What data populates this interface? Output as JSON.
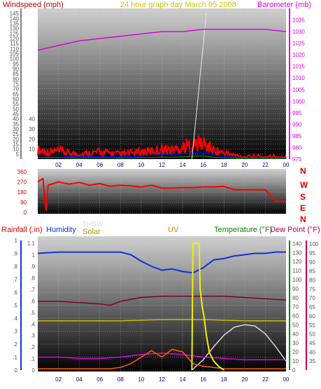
{
  "header": {
    "left": "Windspeed (mph)",
    "center": "24 hour graph day   March 05 2008",
    "right": "Barometer (mb)"
  },
  "colors": {
    "wind": "#ff0000",
    "windGust": "#0000ff",
    "windGreen": "#008000",
    "baro": "#e000e0",
    "dir": "#ff0000",
    "humidity": "#1030e0",
    "solar": "#c0c000",
    "uv": "#f0f000",
    "temp": "#800030",
    "dew": "#e000e0",
    "thsw": "#d8d8d8",
    "rain": "#ff6000",
    "tempAxis": "#008000",
    "dewAxis": "#c00040"
  },
  "bottom_labels": {
    "rainfall": "Rainfall (.in)",
    "humidity": "Humidity",
    "thsw": "THSW",
    "solar": "Solar",
    "uv": "UV",
    "temperature": "Temperature (°F)",
    "dewpoint": "Dew Point (°F)"
  },
  "chart_data": [
    {
      "type": "line",
      "title": "24 hour graph day   March 05 2008",
      "x_ticks": [
        "02",
        "04",
        "06",
        "08",
        "10",
        "12",
        "14",
        "16",
        "18",
        "20",
        "22",
        "00"
      ],
      "y_left": {
        "label": "Windspeed (mph)",
        "range": [
          0,
          150
        ],
        "ticks": [
          5,
          10,
          15,
          20,
          25,
          30,
          35,
          40,
          45,
          50,
          55,
          60,
          65,
          70,
          75,
          80,
          85,
          90,
          95,
          100,
          105,
          110,
          115,
          120,
          125,
          130,
          135,
          140,
          145
        ]
      },
      "y_left_inner": {
        "ticks": [
          10,
          20,
          30,
          40
        ]
      },
      "y_right": {
        "label": "Barometer (mb)",
        "range": [
          975,
          1040
        ],
        "ticks": [
          975,
          980,
          985,
          990,
          995,
          1000,
          1005,
          1010,
          1015,
          1020,
          1025,
          1030,
          1035
        ]
      },
      "series": [
        {
          "name": "Barometer (mb)",
          "hours": [
            0,
            2,
            4,
            6,
            8,
            10,
            12,
            14,
            16,
            18,
            20,
            22,
            24
          ],
          "values": [
            1022,
            1024,
            1026,
            1027,
            1028,
            1029,
            1030,
            1030,
            1031,
            1031,
            1031,
            1031,
            1030
          ]
        },
        {
          "name": "Windspeed (mph)",
          "hours": [
            0,
            1,
            2,
            3,
            4,
            5,
            6,
            7,
            8,
            9,
            10,
            11,
            12,
            13,
            14,
            15,
            16,
            17,
            18,
            19,
            20,
            21,
            22,
            23,
            24
          ],
          "values": [
            9,
            7,
            8,
            6,
            5,
            6,
            7,
            6,
            5,
            6,
            7,
            8,
            10,
            9,
            12,
            14,
            16,
            9,
            6,
            4,
            2,
            3,
            2,
            3,
            2
          ]
        }
      ]
    },
    {
      "type": "line",
      "title": "",
      "y_left": {
        "range": [
          0,
          360
        ],
        "ticks": [
          0,
          90,
          180,
          270,
          360
        ]
      },
      "y_right": {
        "ticks": [
          "N",
          "W",
          "S",
          "E",
          "N"
        ]
      },
      "series": [
        {
          "name": "",
          "hours": [
            0,
            0.5,
            0.8,
            1,
            2,
            3,
            4,
            5,
            6,
            7,
            8,
            9,
            10,
            11,
            12,
            13,
            14,
            15,
            16,
            17,
            18,
            19,
            20,
            21,
            22,
            23,
            24
          ],
          "values": [
            270,
            300,
            20,
            240,
            270,
            250,
            265,
            240,
            255,
            230,
            240,
            235,
            225,
            240,
            215,
            215,
            220,
            220,
            225,
            225,
            230,
            200,
            200,
            200,
            200,
            100,
            100
          ]
        }
      ]
    },
    {
      "type": "line",
      "title": "",
      "x_ticks": [
        "02",
        "04",
        "06",
        "08",
        "10",
        "12",
        "14",
        "16",
        "18",
        "20",
        "22",
        "00"
      ],
      "y_left": {
        "label": "Rainfall (.in)",
        "range": [
          0,
          1.0
        ],
        "ticks": [
          0,
          0.1,
          0.2,
          0.3,
          0.4,
          0.5,
          0.6,
          0.7,
          0.8,
          0.9,
          1.0
        ]
      },
      "y_left_inner": {
        "range": [
          0,
          1.15
        ],
        "ticks": [
          0,
          0.1,
          0.2,
          0.3,
          0.4,
          0.5,
          0.6,
          0.7,
          0.8,
          0.9,
          1,
          1.1
        ]
      },
      "y_temp": {
        "label": "Temperature (°F)",
        "range": [
          0,
          145
        ],
        "ticks": [
          0,
          10,
          20,
          30,
          40,
          50,
          60,
          70,
          80,
          90,
          100,
          110,
          120,
          130,
          140
        ]
      },
      "y_dew": {
        "label": "Dew Point (°F)",
        "range": [
          30,
          102
        ],
        "ticks": [
          35,
          40,
          45,
          50,
          55,
          60,
          65,
          70,
          75,
          80,
          85,
          90,
          95,
          100
        ]
      },
      "series": [
        {
          "name": "Humidity",
          "hours": [
            0,
            2,
            4,
            6,
            8,
            9,
            10,
            11,
            12,
            13,
            14,
            15,
            16,
            17,
            18,
            19,
            20,
            21,
            22,
            23,
            24
          ],
          "values": [
            0.9,
            0.91,
            0.91,
            0.91,
            0.91,
            0.89,
            0.84,
            0.8,
            0.77,
            0.78,
            0.76,
            0.75,
            0.79,
            0.85,
            0.86,
            0.88,
            0.89,
            0.9,
            0.9,
            0.91,
            0.91
          ]
        },
        {
          "name": "Solar",
          "hours": [
            0,
            4,
            8,
            12,
            16,
            20,
            24
          ],
          "values": [
            0.38,
            0.38,
            0.38,
            0.39,
            0.39,
            0.38,
            0.38
          ]
        },
        {
          "name": "Temperature (°F)",
          "hours": [
            0,
            2,
            4,
            6,
            7,
            8,
            10,
            12,
            14,
            16,
            18,
            20,
            22,
            24
          ],
          "values": [
            0.53,
            0.53,
            0.52,
            0.51,
            0.5,
            0.53,
            0.56,
            0.57,
            0.57,
            0.57,
            0.57,
            0.56,
            0.55,
            0.54
          ]
        },
        {
          "name": "UV",
          "hours": [
            14.9,
            15.0,
            15.6,
            15.7,
            15.9,
            16.1,
            16.3,
            16.6,
            17.0,
            17.5,
            18.0
          ],
          "values": [
            0.0,
            1.1,
            1.1,
            0.7,
            0.55,
            0.45,
            0.3,
            0.15,
            0.08,
            0.03,
            0.0
          ]
        },
        {
          "name": "THSW",
          "hours": [
            14.9,
            16,
            17,
            18,
            19,
            20,
            21,
            22,
            23,
            24
          ],
          "values": [
            0.0,
            0.08,
            0.18,
            0.27,
            0.33,
            0.35,
            0.34,
            0.28,
            0.18,
            0.07
          ]
        },
        {
          "name": "Dew Point (°F)",
          "hours": [
            0,
            2,
            4,
            6,
            8,
            10,
            12,
            14,
            16,
            18,
            20,
            22,
            24
          ],
          "values": [
            0.1,
            0.1,
            0.09,
            0.09,
            0.1,
            0.12,
            0.13,
            0.12,
            0.1,
            0.09,
            0.08,
            0.08,
            0.08
          ]
        },
        {
          "name": "Rainfall (.in)",
          "hours": [
            0,
            6,
            7,
            8,
            9,
            10,
            11,
            12,
            13,
            14,
            15,
            16,
            17,
            18,
            24
          ],
          "values": [
            0.01,
            0.01,
            0.01,
            0.02,
            0.05,
            0.1,
            0.15,
            0.1,
            0.16,
            0.14,
            0.05,
            0.03,
            0.02,
            0.01,
            0.01
          ]
        }
      ]
    }
  ]
}
